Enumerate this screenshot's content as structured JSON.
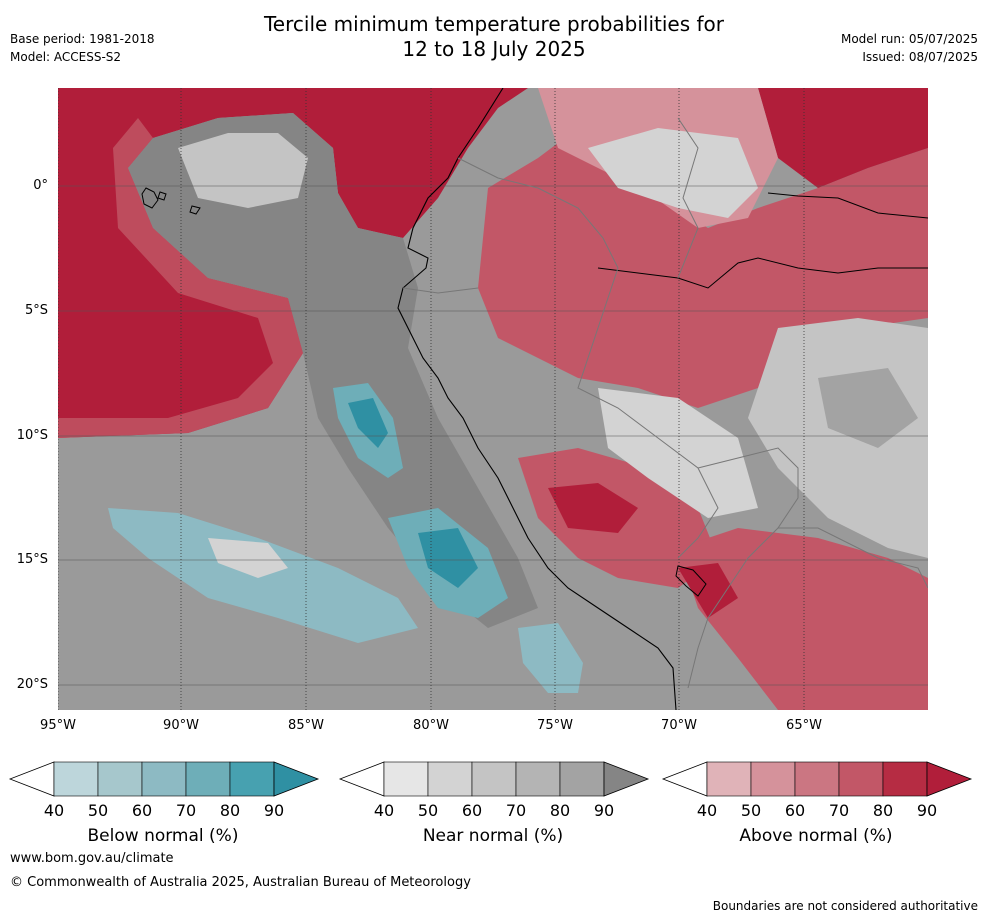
{
  "title": {
    "line1": "Tercile minimum temperature probabilities for",
    "line2": "12 to 18 July 2025"
  },
  "meta_left": {
    "base_period": "Base period: 1981-2018",
    "model": "Model: ACCESS-S2"
  },
  "meta_right": {
    "model_run": "Model run: 05/07/2025",
    "issued": "Issued: 08/07/2025"
  },
  "map": {
    "lat_labels": [
      "0°",
      "5°S",
      "10°S",
      "15°S",
      "20°S"
    ],
    "lon_labels": [
      "95°W",
      "90°W",
      "85°W",
      "80°W",
      "75°W",
      "70°W",
      "65°W"
    ]
  },
  "legends": [
    {
      "name": "below",
      "title": "Below normal (%)",
      "ticks": [
        "40",
        "50",
        "60",
        "70",
        "80",
        "90"
      ],
      "colors": [
        "#ffffff",
        "#bdd6db",
        "#a6c7cc",
        "#8dbac3",
        "#6eaeb8",
        "#47a1b0",
        "#2f90a3"
      ]
    },
    {
      "name": "near",
      "title": "Near normal (%)",
      "ticks": [
        "40",
        "50",
        "60",
        "70",
        "80",
        "90"
      ],
      "colors": [
        "#ffffff",
        "#e6e6e6",
        "#d3d3d3",
        "#c4c4c4",
        "#b4b4b4",
        "#a3a3a3",
        "#858585"
      ]
    },
    {
      "name": "above",
      "title": "Above normal (%)",
      "ticks": [
        "40",
        "50",
        "60",
        "70",
        "80",
        "90"
      ],
      "colors": [
        "#ffffff",
        "#e0b3b8",
        "#d5929b",
        "#cb7682",
        "#c25767",
        "#b62c43",
        "#b11e3a"
      ]
    }
  ],
  "footer": {
    "url": "www.bom.gov.au/climate",
    "copyright": "© Commonwealth of Australia 2025, Australian Bureau of Meteorology",
    "note": "Boundaries are not considered authoritative"
  }
}
